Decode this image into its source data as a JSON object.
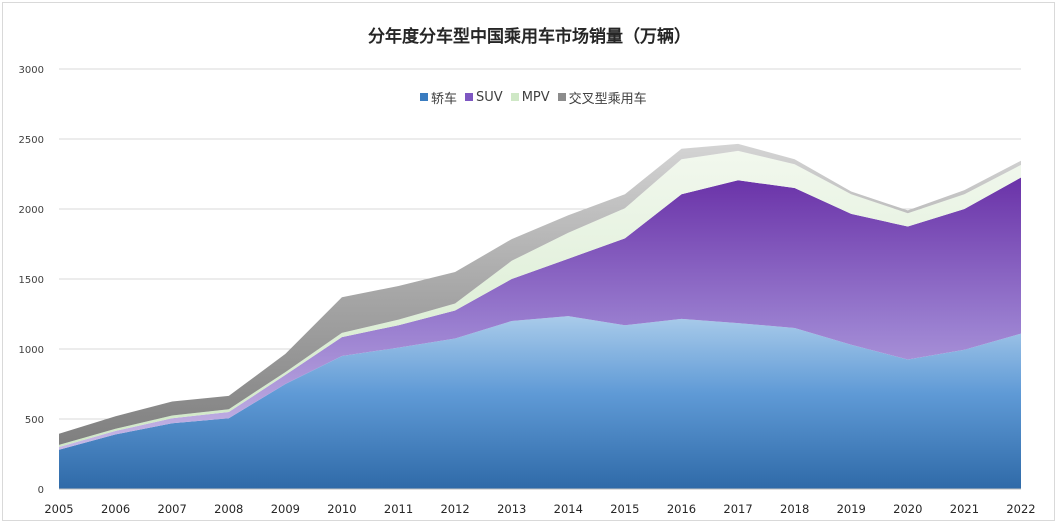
{
  "chart_data": {
    "type": "area",
    "stacked": true,
    "title": "分年度分车型中国乘用车市场销量（万辆）",
    "xlabel": "",
    "ylabel": "",
    "ylim": [
      0,
      3000
    ],
    "yticks": [
      0,
      500,
      1000,
      1500,
      2000,
      2500,
      3000
    ],
    "grid": true,
    "legend_position": "top",
    "categories": [
      "2005",
      "2006",
      "2007",
      "2008",
      "2009",
      "2010",
      "2011",
      "2012",
      "2013",
      "2014",
      "2015",
      "2016",
      "2017",
      "2018",
      "2019",
      "2020",
      "2021",
      "2022"
    ],
    "series": [
      {
        "name": "轿车",
        "color": "#3a7cc0",
        "values": [
          280,
          390,
          470,
          505,
          750,
          950,
          1010,
          1075,
          1200,
          1235,
          1170,
          1215,
          1185,
          1150,
          1030,
          925,
          995,
          1110
        ]
      },
      {
        "name": "SUV",
        "color": "#7e57c2",
        "values": [
          20,
          25,
          35,
          45,
          65,
          135,
          160,
          200,
          300,
          410,
          620,
          890,
          1020,
          1000,
          935,
          950,
          1005,
          1115
        ]
      },
      {
        "name": "MPV",
        "color": "#cfe8c6",
        "values": [
          15,
          15,
          20,
          20,
          20,
          30,
          40,
          50,
          130,
          185,
          215,
          250,
          210,
          170,
          140,
          95,
          105,
          90
        ]
      },
      {
        "name": "交叉型乘用车",
        "color": "#8c8c8c",
        "values": [
          80,
          90,
          100,
          95,
          130,
          255,
          240,
          225,
          155,
          125,
          100,
          75,
          50,
          35,
          20,
          20,
          30,
          30
        ]
      }
    ]
  }
}
